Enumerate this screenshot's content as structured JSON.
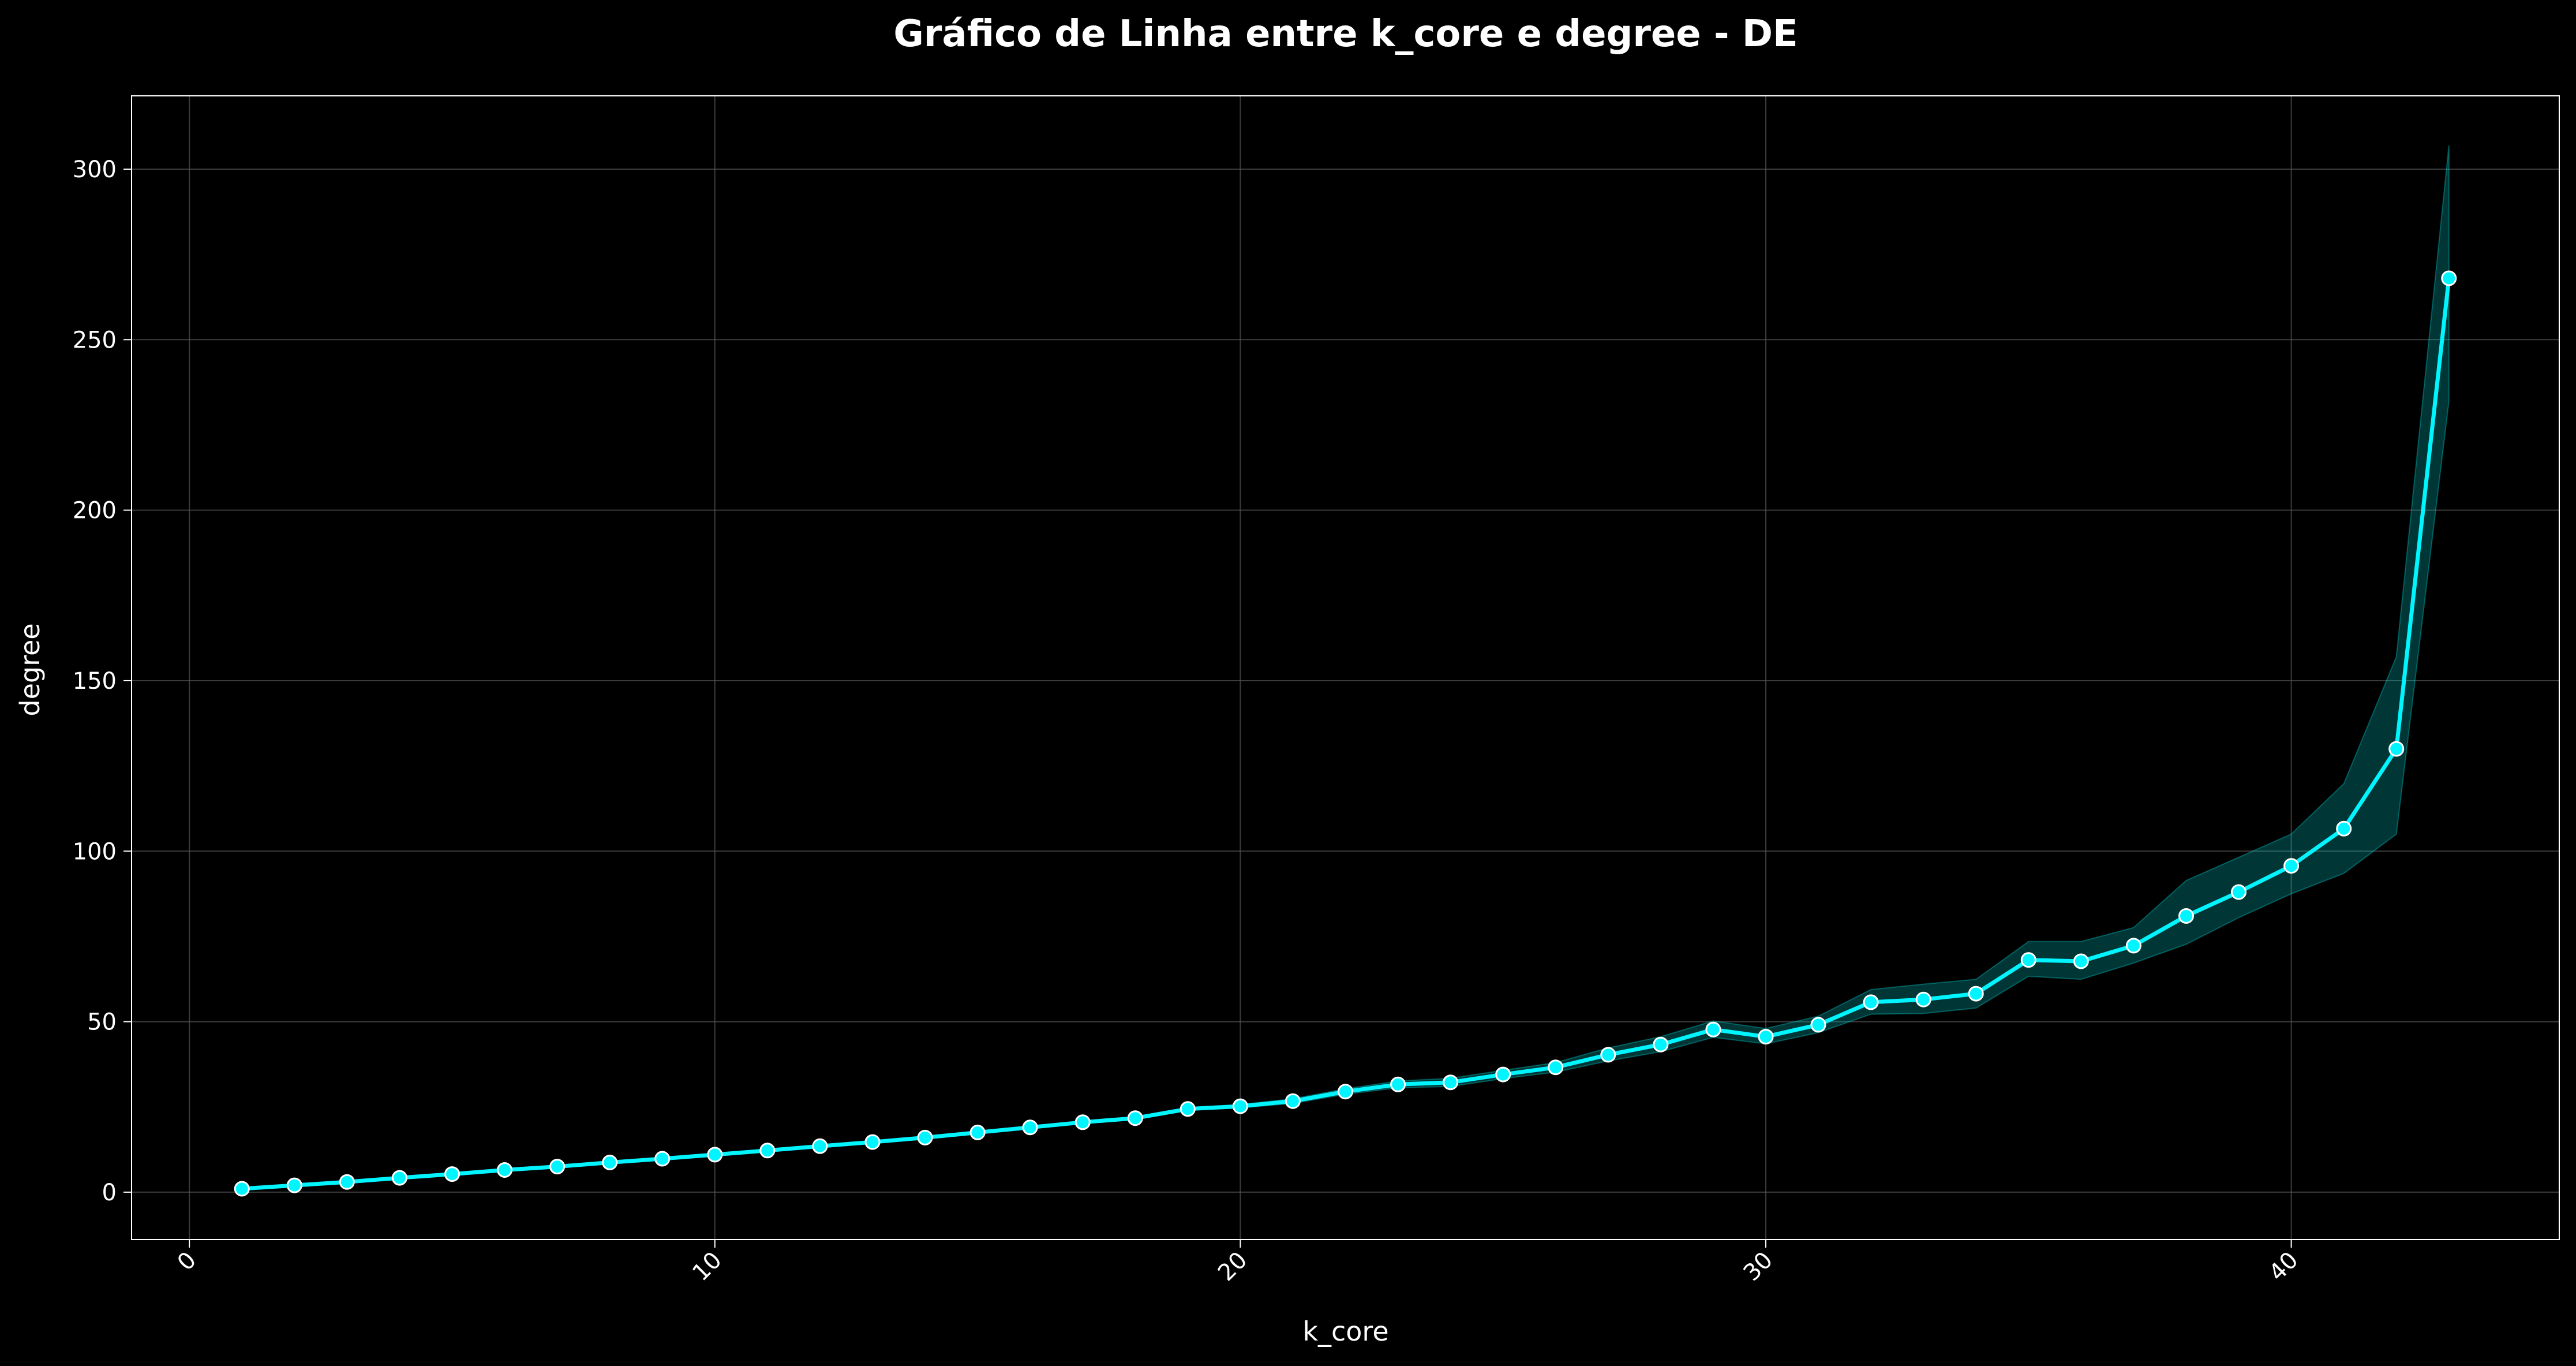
{
  "chart_data": {
    "type": "line",
    "title": "Gráfico de Linha entre k_core e degree - DE",
    "xlabel": "k_core",
    "ylabel": "degree",
    "xlim": [
      -1.1,
      45.1
    ],
    "ylim": [
      -13.9,
      321.5
    ],
    "xticks": [
      0,
      10,
      20,
      30,
      40
    ],
    "yticks": [
      0,
      50,
      100,
      150,
      200,
      250,
      300
    ],
    "grid": true,
    "legend": "none",
    "colors": {
      "background": "#000000",
      "line": "#00f5ff",
      "marker_edge": "#ffffff",
      "band": "#00d9d9",
      "grid": "#555555"
    },
    "series": [
      {
        "x": [
          1,
          2,
          3,
          4,
          5,
          6,
          7,
          8,
          9,
          10,
          11,
          12,
          13,
          14,
          15,
          16,
          17,
          18,
          19,
          20,
          21,
          22,
          23,
          24,
          25,
          26,
          27,
          28,
          29,
          30,
          31,
          32,
          33,
          34,
          35,
          36,
          37,
          38,
          39,
          40,
          41,
          42,
          43
        ],
        "y": [
          1,
          2,
          3,
          4.2,
          5.3,
          6.5,
          7.5,
          8.7,
          9.8,
          11,
          12.2,
          13.5,
          14.7,
          16,
          17.5,
          19,
          20.5,
          21.7,
          24.4,
          25.2,
          26.7,
          29.5,
          31.6,
          32.2,
          34.5,
          36.6,
          40.3,
          43.3,
          47.7,
          45.6,
          49.1,
          55.7,
          56.5,
          58.2,
          68.1,
          67.7,
          72.3,
          81,
          88,
          95.7,
          106.6,
          130,
          268
        ],
        "ci_lower": [
          1,
          2,
          3,
          4.2,
          5.3,
          6.5,
          7.5,
          8.7,
          9.8,
          11,
          12.2,
          13.5,
          14.7,
          16,
          17.5,
          19,
          20.3,
          21.4,
          24,
          24.7,
          26,
          28.7,
          30.6,
          31,
          33.3,
          35.2,
          38.5,
          41.2,
          45.4,
          43.5,
          46.8,
          52.2,
          52.4,
          54,
          63.3,
          62.4,
          67.2,
          72.7,
          80.5,
          87.5,
          93.5,
          105,
          232
        ],
        "ci_upper": [
          1,
          2,
          3,
          4.2,
          5.3,
          6.5,
          7.5,
          8.7,
          9.8,
          11,
          12.2,
          13.5,
          14.7,
          16,
          17.5,
          19,
          20.7,
          22,
          24.8,
          25.7,
          27.4,
          30.3,
          32.6,
          33.4,
          35.7,
          38,
          42.3,
          45.6,
          50.2,
          48,
          51.6,
          59.4,
          61,
          62.4,
          73.5,
          73.5,
          77.6,
          91.4,
          98.2,
          105,
          119.8,
          157,
          307
        ]
      }
    ]
  }
}
